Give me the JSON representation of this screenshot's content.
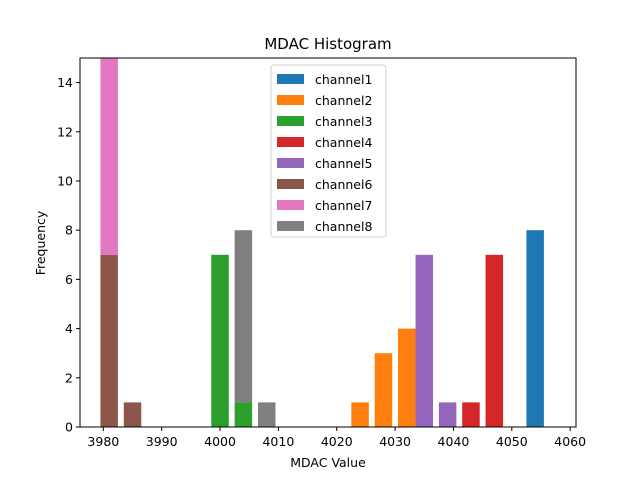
{
  "chart_data": {
    "type": "bar",
    "title": "MDAC Histogram",
    "xlabel": "MDAC Value",
    "ylabel": "Frequency",
    "xlim": [
      3976,
      4061
    ],
    "ylim": [
      0,
      15
    ],
    "xticks": [
      3980,
      3990,
      4000,
      4010,
      4020,
      4030,
      4040,
      4050,
      4060
    ],
    "yticks": [
      0,
      2,
      4,
      6,
      8,
      10,
      12,
      14
    ],
    "bar_width": 3,
    "legend_position": "top-center",
    "series": [
      {
        "name": "channel1",
        "color": "#1f77b4",
        "bars": [
          {
            "x": 4054,
            "y": 8
          }
        ]
      },
      {
        "name": "channel2",
        "color": "#ff7f0e",
        "bars": [
          {
            "x": 4024,
            "y": 1
          },
          {
            "x": 4028,
            "y": 3
          },
          {
            "x": 4032,
            "y": 4
          }
        ]
      },
      {
        "name": "channel3",
        "color": "#2ca02c",
        "bars": [
          {
            "x": 4000,
            "y": 7
          },
          {
            "x": 4004,
            "y": 1
          }
        ]
      },
      {
        "name": "channel4",
        "color": "#d62728",
        "bars": [
          {
            "x": 4043,
            "y": 1
          },
          {
            "x": 4047,
            "y": 7
          }
        ]
      },
      {
        "name": "channel5",
        "color": "#9467bd",
        "bars": [
          {
            "x": 4035,
            "y": 7
          },
          {
            "x": 4039,
            "y": 1
          }
        ]
      },
      {
        "name": "channel6",
        "color": "#8c564b",
        "bars": [
          {
            "x": 3981,
            "y": 7
          },
          {
            "x": 3985,
            "y": 1
          }
        ]
      },
      {
        "name": "channel7",
        "color": "#e377c2",
        "bars": [
          {
            "x": 3981,
            "y": 8,
            "base": 7
          }
        ]
      },
      {
        "name": "channel8",
        "color": "#7f7f7f",
        "bars": [
          {
            "x": 4004,
            "y": 7,
            "base": 1
          },
          {
            "x": 4008,
            "y": 1
          }
        ]
      }
    ]
  }
}
